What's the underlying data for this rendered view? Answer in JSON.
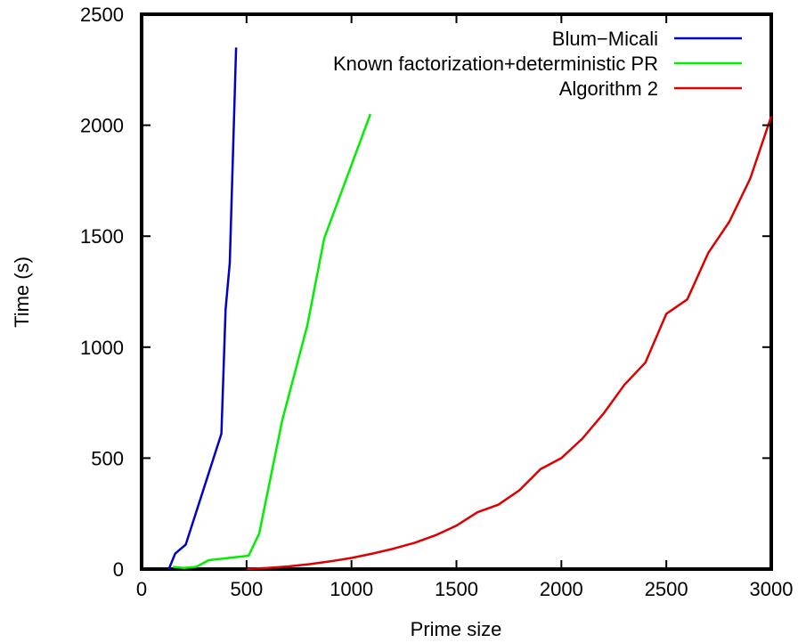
{
  "chart_data": {
    "type": "line",
    "xlabel": "Prime size",
    "ylabel": "Time (s)",
    "xlim": [
      0,
      3000
    ],
    "ylim": [
      0,
      2500
    ],
    "xticks": [
      0,
      500,
      1000,
      1500,
      2000,
      2500,
      3000
    ],
    "yticks": [
      0,
      500,
      1000,
      1500,
      2000,
      2500
    ],
    "grid": false,
    "legend_position": "top-right",
    "series": [
      {
        "name": "Blum−Micali",
        "color": "#0000cc",
        "points": [
          [
            130,
            0
          ],
          [
            160,
            70
          ],
          [
            210,
            110
          ],
          [
            380,
            610
          ],
          [
            400,
            1170
          ],
          [
            420,
            1380
          ],
          [
            450,
            2350
          ]
        ]
      },
      {
        "name": "Known factorization+deterministic PR",
        "color": "#00ee00",
        "points": [
          [
            150,
            10
          ],
          [
            200,
            5
          ],
          [
            260,
            10
          ],
          [
            320,
            40
          ],
          [
            510,
            60
          ],
          [
            560,
            160
          ],
          [
            670,
            670
          ],
          [
            790,
            1100
          ],
          [
            870,
            1490
          ],
          [
            1090,
            2050
          ]
        ]
      },
      {
        "name": "Algorithm 2",
        "color": "#dd0000",
        "points": [
          [
            500,
            0
          ],
          [
            600,
            5
          ],
          [
            700,
            12
          ],
          [
            800,
            22
          ],
          [
            900,
            35
          ],
          [
            1000,
            50
          ],
          [
            1100,
            70
          ],
          [
            1200,
            92
          ],
          [
            1300,
            118
          ],
          [
            1400,
            152
          ],
          [
            1500,
            196
          ],
          [
            1600,
            256
          ],
          [
            1700,
            290
          ],
          [
            1800,
            355
          ],
          [
            1900,
            450
          ],
          [
            2000,
            500
          ],
          [
            2100,
            588
          ],
          [
            2200,
            700
          ],
          [
            2300,
            830
          ],
          [
            2400,
            930
          ],
          [
            2500,
            1150
          ],
          [
            2600,
            1215
          ],
          [
            2700,
            1425
          ],
          [
            2800,
            1565
          ],
          [
            2900,
            1760
          ],
          [
            3000,
            2040
          ]
        ]
      }
    ]
  }
}
